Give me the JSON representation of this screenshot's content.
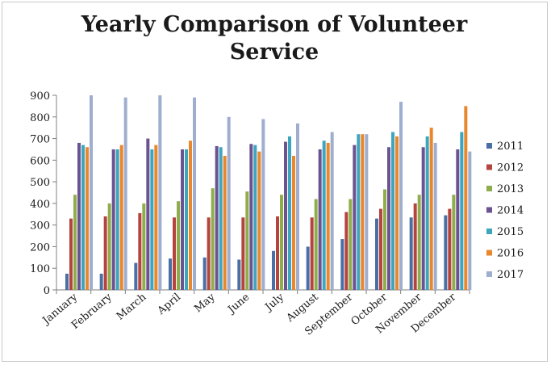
{
  "chart_data": {
    "type": "bar",
    "title": "Yearly Comparison of Volunteer Service",
    "xlabel": "",
    "ylabel": "",
    "ylim": [
      0,
      900
    ],
    "yticks": [
      0,
      100,
      200,
      300,
      400,
      500,
      600,
      700,
      800,
      900
    ],
    "grid": false,
    "legend_position": "right",
    "categories": [
      "January",
      "February",
      "March",
      "April",
      "May",
      "June",
      "July",
      "August",
      "September",
      "October",
      "November",
      "December"
    ],
    "series": [
      {
        "name": "2011",
        "color": "#4a6fa5",
        "values": [
          75,
          75,
          125,
          145,
          150,
          140,
          180,
          200,
          235,
          330,
          335,
          345
        ]
      },
      {
        "name": "2012",
        "color": "#b5443f",
        "values": [
          330,
          340,
          355,
          335,
          335,
          335,
          340,
          335,
          360,
          375,
          400,
          375
        ]
      },
      {
        "name": "2013",
        "color": "#8fae4b",
        "values": [
          440,
          400,
          400,
          410,
          470,
          455,
          440,
          420,
          420,
          465,
          440,
          440
        ]
      },
      {
        "name": "2014",
        "color": "#6b5391",
        "values": [
          680,
          650,
          700,
          650,
          665,
          675,
          685,
          650,
          670,
          660,
          660,
          650
        ]
      },
      {
        "name": "2015",
        "color": "#3ea5bf",
        "values": [
          670,
          650,
          650,
          650,
          660,
          670,
          710,
          690,
          720,
          730,
          710,
          730
        ]
      },
      {
        "name": "2016",
        "color": "#e9872c",
        "values": [
          660,
          670,
          670,
          690,
          620,
          640,
          620,
          680,
          720,
          710,
          750,
          850
        ]
      },
      {
        "name": "2017",
        "color": "#9faecf",
        "values": [
          900,
          890,
          900,
          890,
          800,
          790,
          770,
          730,
          720,
          870,
          680,
          640
        ]
      }
    ]
  }
}
